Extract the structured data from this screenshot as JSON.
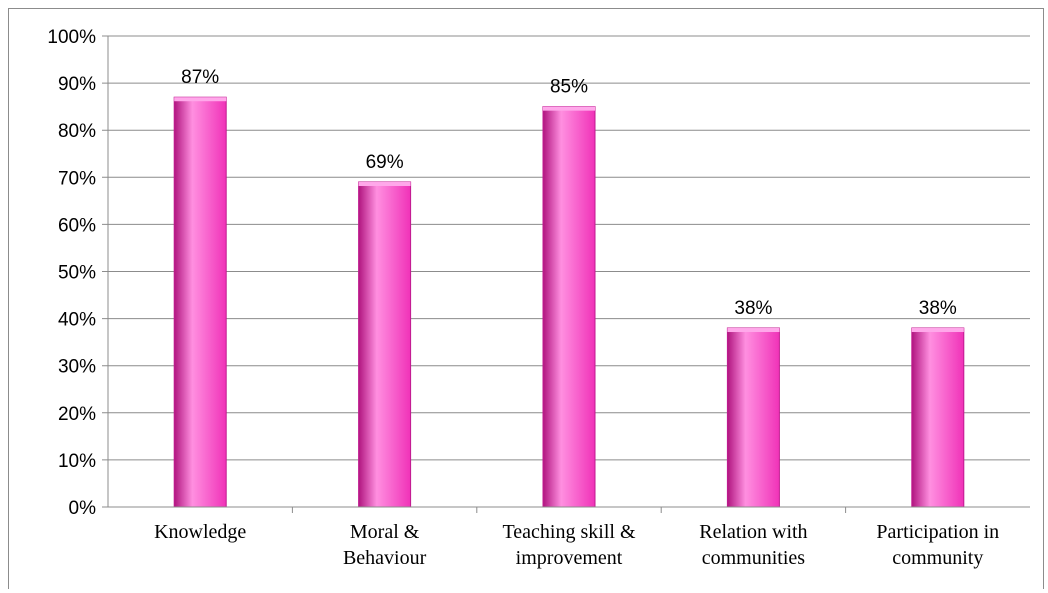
{
  "chart_data": {
    "type": "bar",
    "categories": [
      [
        "Knowledge"
      ],
      [
        "Moral &",
        "Behaviour"
      ],
      [
        "Teaching skill &",
        "improvement"
      ],
      [
        "Relation with",
        "communities"
      ],
      [
        "Participation in",
        "community"
      ]
    ],
    "values": [
      87,
      69,
      85,
      38,
      38
    ],
    "data_labels": [
      "87%",
      "69%",
      "85%",
      "38%",
      "38%"
    ],
    "y_ticks": [
      "0%",
      "10%",
      "20%",
      "30%",
      "40%",
      "50%",
      "60%",
      "70%",
      "80%",
      "90%",
      "100%"
    ],
    "ylim": [
      0,
      100
    ],
    "grid": true,
    "bar_color": "#f032b8",
    "bar_highlight": "#ff8fe0",
    "bar_shadow": "#b0157f"
  }
}
